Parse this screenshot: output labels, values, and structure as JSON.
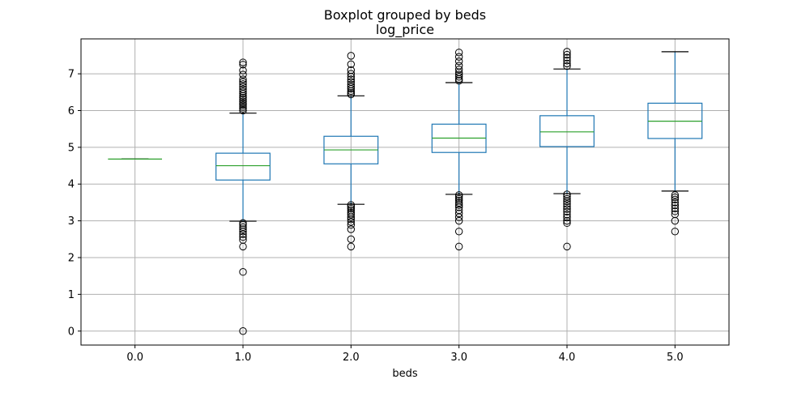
{
  "chart_data": {
    "type": "boxplot",
    "suptitle": "Boxplot grouped by beds",
    "title": "log_price",
    "xlabel": "beds",
    "ylabel": "",
    "ylim": [
      -0.38,
      7.95
    ],
    "yticks": [
      0,
      1,
      2,
      3,
      4,
      5,
      6,
      7
    ],
    "grid": true,
    "colors": {
      "box": "#1f77b4",
      "median": "#2ca02c",
      "grid": "#b0b0b0",
      "flier": "#000000",
      "cap": "#000000"
    },
    "categories": [
      "0.0",
      "1.0",
      "2.0",
      "3.0",
      "4.0",
      "5.0"
    ],
    "boxes": [
      {
        "category": "0.0",
        "whislo": 4.68,
        "q1": 4.68,
        "med": 4.68,
        "q3": 4.68,
        "whishi": 4.68,
        "fliers": []
      },
      {
        "category": "1.0",
        "whislo": 2.99,
        "q1": 4.11,
        "med": 4.5,
        "q3": 4.84,
        "whishi": 5.93,
        "fliers": [
          7.31,
          7.25,
          7.09,
          6.98,
          6.85,
          6.78,
          6.72,
          6.65,
          6.58,
          6.52,
          6.46,
          6.4,
          6.35,
          6.3,
          6.25,
          6.2,
          6.15,
          6.1,
          6.05,
          6.0,
          2.94,
          2.89,
          2.83,
          2.77,
          2.71,
          2.64,
          2.56,
          2.48,
          2.3,
          1.61,
          0.0
        ]
      },
      {
        "category": "2.0",
        "whislo": 3.45,
        "q1": 4.55,
        "med": 4.93,
        "q3": 5.3,
        "whishi": 6.4,
        "fliers": [
          7.49,
          7.26,
          7.1,
          7.0,
          6.92,
          6.85,
          6.78,
          6.71,
          6.65,
          6.59,
          6.53,
          6.48,
          6.44,
          3.43,
          3.38,
          3.33,
          3.28,
          3.22,
          3.17,
          3.1,
          3.04,
          2.97,
          2.89,
          2.77,
          2.5,
          2.3
        ]
      },
      {
        "category": "3.0",
        "whislo": 3.72,
        "q1": 4.86,
        "med": 5.25,
        "q3": 5.63,
        "whishi": 6.76,
        "fliers": [
          7.58,
          7.46,
          7.34,
          7.22,
          7.12,
          7.04,
          6.98,
          6.92,
          6.86,
          6.81,
          3.7,
          3.65,
          3.6,
          3.55,
          3.49,
          3.43,
          3.37,
          3.29,
          3.2,
          3.1,
          3.0,
          2.71,
          2.3
        ]
      },
      {
        "category": "4.0",
        "whislo": 3.74,
        "q1": 5.02,
        "med": 5.42,
        "q3": 5.86,
        "whishi": 7.13,
        "fliers": [
          7.6,
          7.52,
          7.44,
          7.36,
          7.28,
          7.21,
          3.72,
          3.66,
          3.6,
          3.53,
          3.46,
          3.39,
          3.32,
          3.25,
          3.17,
          3.09,
          3.0,
          2.94,
          2.3
        ]
      },
      {
        "category": "5.0",
        "whislo": 3.81,
        "q1": 5.24,
        "med": 5.71,
        "q3": 6.2,
        "whishi": 7.6,
        "fliers": [
          3.7,
          3.64,
          3.58,
          3.5,
          3.42,
          3.34,
          3.26,
          3.18,
          3.0,
          2.71
        ]
      }
    ]
  }
}
